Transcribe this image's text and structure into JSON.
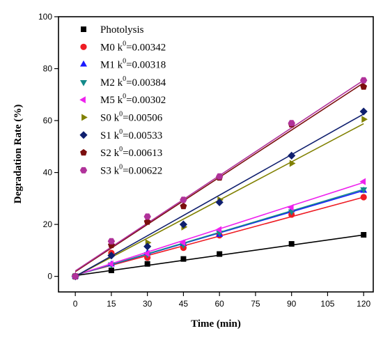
{
  "chart_data": {
    "type": "scatter",
    "title": "",
    "xlabel": "Time (min)",
    "ylabel": "Degradation Rate (%)",
    "xlim": [
      -7,
      124
    ],
    "ylim": [
      -6,
      100
    ],
    "xticks": [
      0,
      15,
      30,
      45,
      60,
      75,
      90,
      105,
      120
    ],
    "yticks": [
      0,
      20,
      40,
      60,
      80,
      100
    ],
    "grid": false,
    "legend_position": "top-left",
    "x": [
      0,
      15,
      30,
      45,
      60,
      90,
      120
    ],
    "series": [
      {
        "name": "Photolysis",
        "label_main": "Photolysis",
        "label_k": "",
        "color": "#000000",
        "marker": "square",
        "values": [
          0,
          2.3,
          4.8,
          6.7,
          8.6,
          12.5,
          16.0
        ],
        "fit": [
          0.3,
          0.1305
        ]
      },
      {
        "name": "M0 k0=0.00342",
        "label_main": "M0 k",
        "label_k": "=0.00342",
        "color": "#ee1c24",
        "marker": "circle",
        "values": [
          0,
          9.0,
          7.2,
          11.0,
          15.8,
          23.8,
          30.5
        ],
        "fit": [
          0.5,
          0.25
        ]
      },
      {
        "name": "M1 k0=0.00318",
        "label_main": "M1 k",
        "label_k": "=0.00318",
        "color": "#1a1aff",
        "marker": "triangle-up",
        "values": [
          0,
          4.6,
          9.0,
          12.5,
          16.0,
          25.5,
          33.0
        ],
        "fit": [
          0.4,
          0.272
        ]
      },
      {
        "name": "M2 k0=0.00384",
        "label_main": "M2 k",
        "label_k": "=0.00384",
        "color": "#138a8a",
        "marker": "triangle-down",
        "values": [
          0,
          4.6,
          8.5,
          12.2,
          16.8,
          25.0,
          33.5
        ],
        "fit": [
          0.4,
          0.276
        ]
      },
      {
        "name": "M5 k0=0.00302",
        "label_main": "M5 k",
        "label_k": "=0.00302",
        "color": "#ee22ee",
        "marker": "triangle-left",
        "values": [
          0,
          4.8,
          8.8,
          13.0,
          18.0,
          26.5,
          36.5
        ],
        "fit": [
          0.4,
          0.298
        ]
      },
      {
        "name": "S0 k0=0.00506",
        "label_main": "S0  k",
        "label_k": "=0.00506",
        "color": "#808000",
        "marker": "triangle-right",
        "values": [
          0,
          8.0,
          13.0,
          19.0,
          29.5,
          43.5,
          60.5
        ],
        "fit": [
          0.0,
          0.49
        ]
      },
      {
        "name": "S1 k0=0.00533",
        "label_main": "S1  k",
        "label_k": "=0.00533",
        "color": "#0f1f6e",
        "marker": "diamond",
        "values": [
          0,
          8.0,
          11.5,
          20.0,
          28.5,
          46.5,
          63.5
        ],
        "fit": [
          0.0,
          0.521
        ]
      },
      {
        "name": "S2 k0=0.00613",
        "label_main": "S2  k",
        "label_k": "=0.00613",
        "color": "#7b0e0e",
        "marker": "pentagon",
        "values": [
          0,
          12.0,
          21.0,
          27.0,
          38.0,
          58.5,
          73.0
        ],
        "fit": [
          1.8,
          0.606
        ]
      },
      {
        "name": "S3 k0=0.00622",
        "label_main": "S3  k",
        "label_k": "=0.00622",
        "color": "#b0329a",
        "marker": "hexagon",
        "values": [
          0,
          13.5,
          23.0,
          29.5,
          38.5,
          59.0,
          75.5
        ],
        "fit": [
          2.1,
          0.612
        ]
      }
    ]
  }
}
